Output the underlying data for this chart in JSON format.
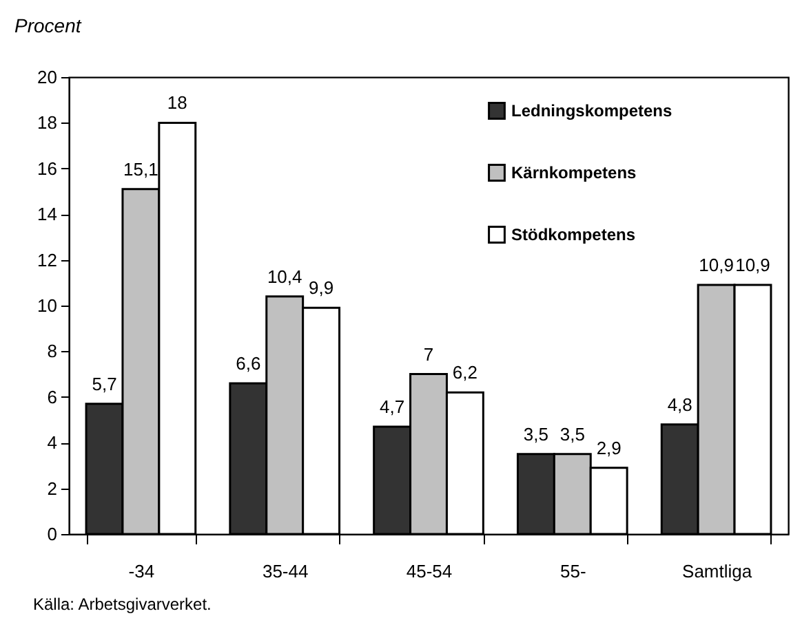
{
  "chart_data": {
    "type": "bar",
    "ylabel": "Procent",
    "categories": [
      "-34",
      "35-44",
      "45-54",
      "55-",
      "Samtliga"
    ],
    "series": [
      {
        "name": "Ledningskompetens",
        "color": "#333333",
        "values": [
          5.7,
          6.6,
          4.7,
          3.5,
          4.8
        ],
        "value_labels": [
          "5,7",
          "6,6",
          "4,7",
          "3,5",
          "4,8"
        ]
      },
      {
        "name": "Kärnkompetens",
        "color": "#c0c0c0",
        "values": [
          15.1,
          10.4,
          7,
          3.5,
          10.9
        ],
        "value_labels": [
          "15,1",
          "10,4",
          "7",
          "3,5",
          "10,9"
        ]
      },
      {
        "name": "Stödkompetens",
        "color": "#ffffff",
        "values": [
          18,
          9.9,
          6.2,
          2.9,
          10.9
        ],
        "value_labels": [
          "18",
          "9,9",
          "6,2",
          "2,9",
          "10,9"
        ]
      }
    ],
    "ylim": [
      0,
      20
    ],
    "yticks": [
      0,
      2,
      4,
      6,
      8,
      10,
      12,
      14,
      16,
      18,
      20
    ],
    "legend": "top right",
    "annotations": [
      "Källa: Arbetsgivarverket."
    ]
  }
}
